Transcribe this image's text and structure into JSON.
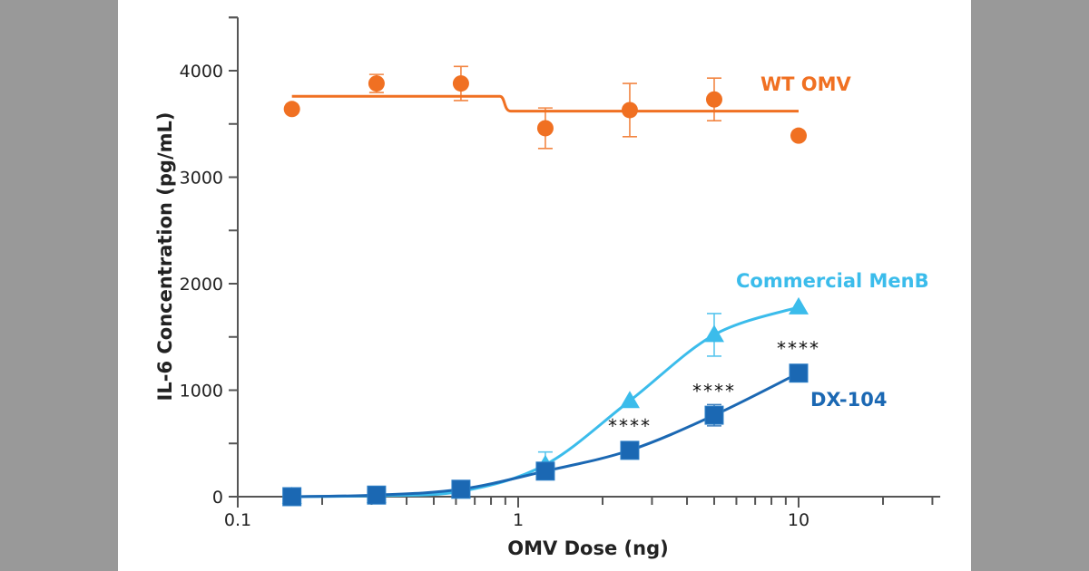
{
  "colors": {
    "background": "#999999",
    "panel": "#ffffff",
    "wt_omv": "#F07022",
    "commercial_menb": "#3BBCEB",
    "dx104": "#1B68B3",
    "axis": "#555555"
  },
  "chart_data": {
    "type": "line",
    "title": "",
    "xlabel": "OMV Dose (ng)",
    "ylabel": "IL-6 Concentration (pg/mL)",
    "xscale": "log",
    "xlim": [
      0.1,
      32
    ],
    "ylim": [
      0,
      4500
    ],
    "x_ticks": [
      0.1,
      1,
      10
    ],
    "x_tick_labels": [
      "0.1",
      "1",
      "10"
    ],
    "y_ticks": [
      0,
      1000,
      2000,
      3000,
      4000
    ],
    "y_tick_labels": [
      "0",
      "1000",
      "2000",
      "3000",
      "4000"
    ],
    "grid": false,
    "legend": "inline labels next to series",
    "x": [
      0.156,
      0.3125,
      0.625,
      1.25,
      2.5,
      5,
      10
    ],
    "series": [
      {
        "name": "WT OMV",
        "marker": "circle",
        "values": [
          3640,
          3880,
          3880,
          3460,
          3630,
          3730,
          3390
        ],
        "errors": [
          0,
          85,
          160,
          190,
          250,
          200,
          0
        ],
        "fit": {
          "type": "step",
          "before": 3760,
          "after": 3620,
          "break_x": 0.9
        }
      },
      {
        "name": "Commercial MenB",
        "marker": "triangle",
        "values": [
          0,
          10,
          50,
          300,
          900,
          1520,
          1780
        ],
        "errors": [
          0,
          0,
          0,
          120,
          0,
          200,
          0
        ]
      },
      {
        "name": "DX-104",
        "marker": "square",
        "values": [
          0,
          15,
          70,
          240,
          435,
          765,
          1160
        ],
        "errors": [
          0,
          0,
          0,
          0,
          0,
          100,
          0
        ]
      }
    ],
    "annotations": [
      {
        "text": "****",
        "x": 2.5,
        "series": "DX-104"
      },
      {
        "text": "****",
        "x": 5,
        "series": "DX-104"
      },
      {
        "text": "****",
        "x": 10,
        "series": "DX-104"
      }
    ]
  }
}
